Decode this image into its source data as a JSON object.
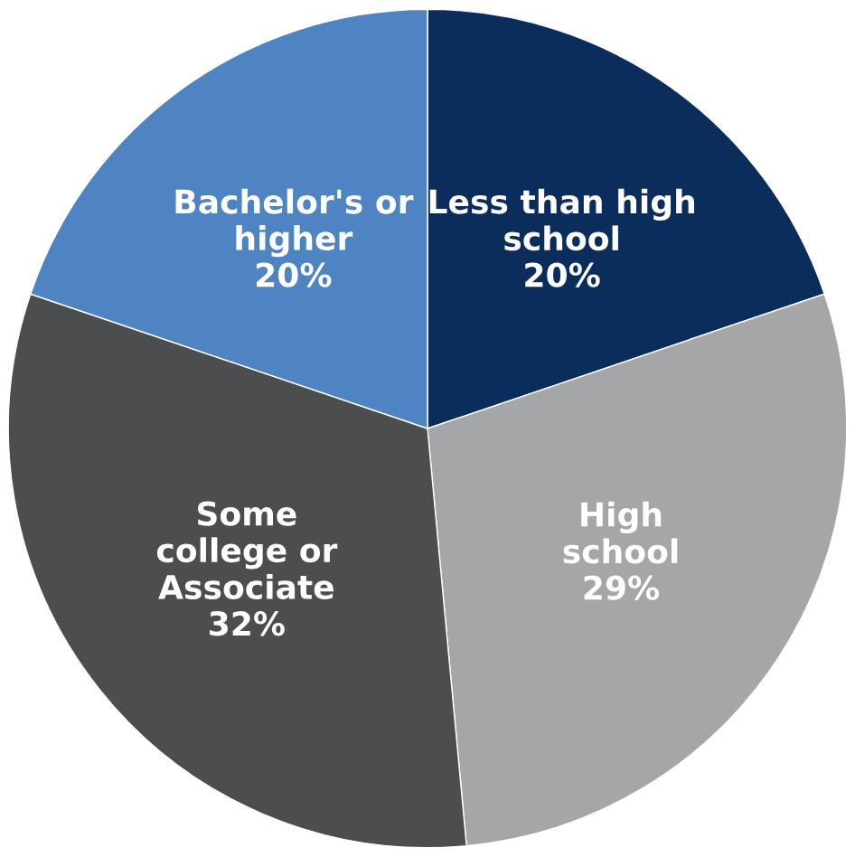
{
  "chart_data": {
    "type": "pie",
    "categories": [
      "Less than high\nschool",
      "High\nschool",
      "Some\ncollege or\nAssociate",
      "Bachelor's or\nhigher"
    ],
    "values": [
      20,
      29,
      32,
      20
    ],
    "value_labels": [
      "20%",
      "29%",
      "32%",
      "20%"
    ],
    "colors": [
      "#0b2d5b",
      "#a5a6a8",
      "#4c4d4f",
      "#4f84c2"
    ]
  }
}
